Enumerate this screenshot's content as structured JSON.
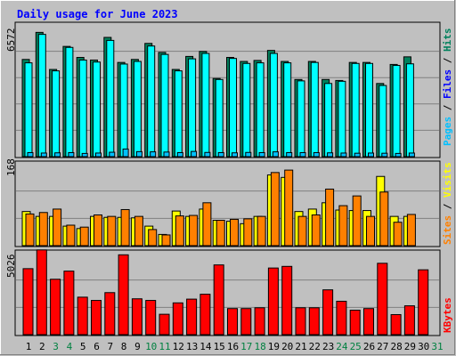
{
  "title": "Daily usage for June 2023",
  "colors": {
    "background": "#c0c0c0",
    "title": "#0000ff",
    "hits": "#00ffff",
    "files": "#00805c",
    "pages": "#00c0ff",
    "visits": "#ffff00",
    "sites": "#ff8000",
    "kbytes": "#ff0000",
    "weekend_day_label": "#008040",
    "weekday_label": "#000000"
  },
  "legend_top": {
    "hits": "Hits",
    "files": "Files",
    "pages": "Pages"
  },
  "legend_mid": {
    "visits": "Visits",
    "sites": "Sites"
  },
  "legend_bottom": {
    "kbytes": "KBytes"
  },
  "chart_data": [
    {
      "type": "bar",
      "panel": "hits-files-pages",
      "ymax_label": "6572",
      "ylim": [
        0,
        6572
      ],
      "categories": [
        "1",
        "2",
        "3",
        "4",
        "5",
        "6",
        "7",
        "8",
        "9",
        "10",
        "11",
        "12",
        "13",
        "14",
        "15",
        "16",
        "17",
        "18",
        "19",
        "20",
        "21",
        "22",
        "23",
        "24",
        "25",
        "26",
        "27",
        "28",
        "29",
        "30",
        "31"
      ],
      "weekend_days": [
        "3",
        "4",
        "10",
        "11",
        "17",
        "18",
        "24",
        "25",
        "31"
      ],
      "series": [
        {
          "name": "Files",
          "values": [
            4850,
            6200,
            4350,
            5500,
            4950,
            4820,
            5950,
            4700,
            4850,
            5650,
            5200,
            4350,
            5000,
            5250,
            3900,
            4950,
            4750,
            4800,
            5300,
            4750,
            3850,
            4750,
            3850,
            3800,
            4700,
            4700,
            3650,
            4600,
            4980,
            0,
            0
          ]
        },
        {
          "name": "Hits",
          "values": [
            4680,
            6100,
            4280,
            5450,
            4820,
            4720,
            5800,
            4620,
            4750,
            5520,
            5100,
            4280,
            4880,
            5150,
            3850,
            4900,
            4650,
            4680,
            5150,
            4680,
            3780,
            4700,
            3650,
            3760,
            4650,
            4650,
            3550,
            4550,
            4630,
            0,
            0
          ]
        },
        {
          "name": "Pages",
          "values": [
            200,
            180,
            190,
            200,
            160,
            180,
            220,
            380,
            250,
            240,
            230,
            200,
            260,
            210,
            200,
            190,
            210,
            200,
            240,
            200,
            200,
            200,
            190,
            180,
            170,
            180,
            170,
            160,
            180,
            0,
            0
          ]
        }
      ]
    },
    {
      "type": "bar",
      "panel": "visits-sites",
      "ymax_label": "168",
      "ylim": [
        0,
        168
      ],
      "categories": [
        "1",
        "2",
        "3",
        "4",
        "5",
        "6",
        "7",
        "8",
        "9",
        "10",
        "11",
        "12",
        "13",
        "14",
        "15",
        "16",
        "17",
        "18",
        "19",
        "20",
        "21",
        "22",
        "23",
        "24",
        "25",
        "26",
        "27",
        "28",
        "29",
        "30",
        "31"
      ],
      "series": [
        {
          "name": "Visits",
          "values": [
            70,
            60,
            60,
            40,
            35,
            60,
            58,
            58,
            57,
            40,
            23,
            71,
            60,
            75,
            52,
            50,
            45,
            60,
            145,
            140,
            70,
            75,
            88,
            73,
            72,
            72,
            142,
            60,
            60,
            0,
            0
          ]
        },
        {
          "name": "Sites",
          "values": [
            65,
            68,
            75,
            42,
            38,
            63,
            60,
            74,
            60,
            33,
            22,
            61,
            62,
            88,
            52,
            54,
            55,
            60,
            150,
            155,
            60,
            63,
            116,
            82,
            102,
            60,
            110,
            48,
            64,
            0,
            0
          ]
        }
      ]
    },
    {
      "type": "bar",
      "panel": "kbytes",
      "ymax_label": "5026",
      "ylim": [
        0,
        5026
      ],
      "categories": [
        "1",
        "2",
        "3",
        "4",
        "5",
        "6",
        "7",
        "8",
        "9",
        "10",
        "11",
        "12",
        "13",
        "14",
        "15",
        "16",
        "17",
        "18",
        "19",
        "20",
        "21",
        "22",
        "23",
        "24",
        "25",
        "26",
        "27",
        "28",
        "29",
        "30",
        "31"
      ],
      "series": [
        {
          "name": "KBytes",
          "values": [
            4050,
            5200,
            3400,
            3900,
            2300,
            2100,
            2580,
            4900,
            2200,
            2100,
            1250,
            1950,
            2180,
            2480,
            4280,
            1600,
            1600,
            1650,
            4090,
            4190,
            1650,
            1650,
            2750,
            2050,
            1500,
            1600,
            4380,
            1230,
            1770,
            3980,
            0
          ]
        }
      ]
    }
  ]
}
